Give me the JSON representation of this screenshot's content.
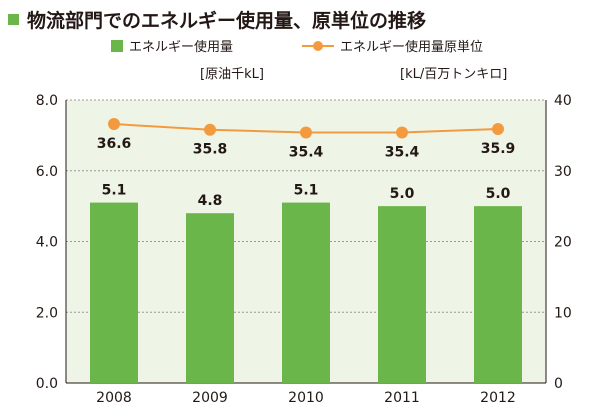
{
  "title": "物流部門でのエネルギー使用量、原単位の推移",
  "chart_data": {
    "type": "bar",
    "categories": [
      "2008",
      "2009",
      "2010",
      "2011",
      "2012"
    ],
    "series": [
      {
        "name": "エネルギー使用量",
        "type": "bar",
        "axis": "left",
        "unit": "[原油千kL]",
        "values": [
          5.1,
          4.8,
          5.1,
          5.0,
          5.0
        ],
        "labels": [
          "5.1",
          "4.8",
          "5.1",
          "5.0",
          "5.0"
        ],
        "color": "#6bb64a"
      },
      {
        "name": "エネルギー使用量原単位",
        "type": "line",
        "axis": "right",
        "unit": "[kL/百万トンキロ]",
        "values": [
          36.6,
          35.8,
          35.4,
          35.4,
          35.9
        ],
        "labels": [
          "36.6",
          "35.8",
          "35.4",
          "35.4",
          "35.9"
        ],
        "color": "#f39a3e"
      }
    ],
    "y_left": {
      "range": [
        0,
        8
      ],
      "ticks": [
        "0.0",
        "2.0",
        "4.0",
        "6.0",
        "8.0"
      ]
    },
    "y_right": {
      "range": [
        0,
        40
      ],
      "ticks": [
        "0",
        "10",
        "20",
        "30",
        "40"
      ]
    },
    "plot_background": "#eef5e6",
    "grid": "dashed-horizontal",
    "legend_position": "top"
  }
}
